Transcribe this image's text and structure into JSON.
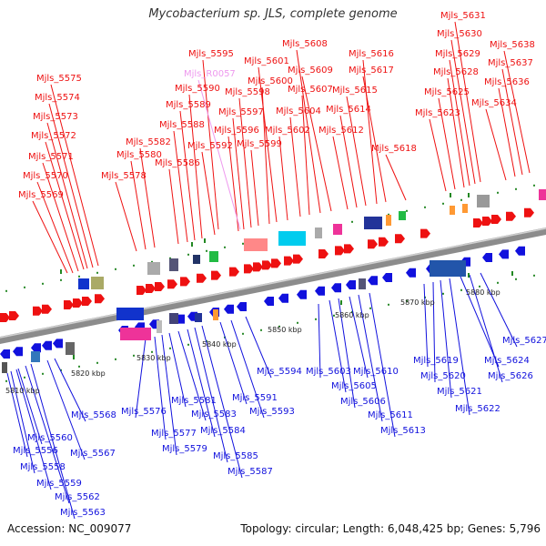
{
  "title": "Mycobacterium sp. JLS, complete genome",
  "footer": {
    "accession": "Accession: NC_009077",
    "topology": "Topology: circular; Length: 6,048,425 bp; Genes: 5,796"
  },
  "colors": {
    "forward": "#ee1111",
    "reverse": "#1111dd",
    "rna": "#ee99ee",
    "track_grey": "#999999",
    "tick_green": "#228822"
  },
  "kbp_ticks": [
    "5810 kbp",
    "5820 kbp",
    "5830 kbp",
    "5840 kbp",
    "5850 kbp",
    "5860 kbp",
    "5870 kbp",
    "5880 kbp"
  ],
  "forward_labels": [
    "Mjls_5569",
    "Mjls_5570",
    "Mjls_5571",
    "Mjls_5572",
    "Mjls_5573",
    "Mjls_5574",
    "Mjls_5575",
    "Mjls_5578",
    "Mjls_5580",
    "Mjls_5582",
    "Mjls_5586",
    "Mjls_5588",
    "Mjls_5589",
    "Mjls_5590",
    "Mjls_5592",
    "Mjls_5595",
    "Mjls_5596",
    "Mjls_5597",
    "Mjls_5598",
    "Mjls_5599",
    "Mjls_5600",
    "Mjls_5601",
    "Mjls_5602",
    "Mjls_5604",
    "Mjls_5607",
    "Mjls_5608",
    "Mjls_5609",
    "Mjls_5612",
    "Mjls_5614",
    "Mjls_5615",
    "Mjls_5616",
    "Mjls_5617",
    "Mjls_5618",
    "Mjls_5623",
    "Mjls_5625",
    "Mjls_5628",
    "Mjls_5629",
    "Mjls_5630",
    "Mjls_5631",
    "Mjls_5634",
    "Mjls_5636",
    "Mjls_5637",
    "Mjls_5638"
  ],
  "rna_labels": [
    "Mjls_R0057"
  ],
  "reverse_labels": [
    "Mjls_5556",
    "Mjls_5558",
    "Mjls_5559",
    "Mjls_5560",
    "Mjls_5562",
    "Mjls_5563",
    "Mjls_5567",
    "Mjls_5568",
    "Mjls_5576",
    "Mjls_5577",
    "Mjls_5579",
    "Mjls_5581",
    "Mjls_5583",
    "Mjls_5584",
    "Mjls_5585",
    "Mjls_5587",
    "Mjls_5591",
    "Mjls_5593",
    "Mjls_5594",
    "Mjls_5603",
    "Mjls_5605",
    "Mjls_5606",
    "Mjls_5610",
    "Mjls_5611",
    "Mjls_5613",
    "Mjls_5619",
    "Mjls_5620",
    "Mjls_5621",
    "Mjls_5622",
    "Mjls_5624",
    "Mjls_5626",
    "Mjls_5627"
  ]
}
